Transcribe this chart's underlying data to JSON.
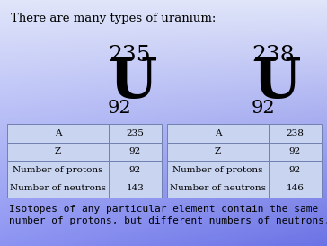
{
  "title": "There are many types of uranium:",
  "symbol": "U",
  "isotope1": {
    "mass": "235",
    "atomic_num": "92",
    "rows": [
      [
        "A",
        "235"
      ],
      [
        "Z",
        "92"
      ],
      [
        "Number of protons",
        "92"
      ],
      [
        "Number of neutrons",
        "143"
      ]
    ]
  },
  "isotope2": {
    "mass": "238",
    "atomic_num": "92",
    "rows": [
      [
        "A",
        "238"
      ],
      [
        "Z",
        "92"
      ],
      [
        "Number of protons",
        "92"
      ],
      [
        "Number of neutrons",
        "146"
      ]
    ]
  },
  "footer_line1": "Isotopes of any particular element contain the same",
  "footer_line2": "number of protons, but different numbers of neutrons.",
  "bg_tl": [
    0.72,
    0.78,
    0.95
  ],
  "bg_br": [
    0.55,
    0.6,
    0.98
  ],
  "title_fontsize": 9.5,
  "symbol_fontsize": 44,
  "mass_fontsize": 18,
  "atomic_fontsize": 15,
  "table_fontsize": 7.5,
  "footer_fontsize": 8,
  "table_color": "#c8d4f0",
  "table_border": "#7080b0"
}
